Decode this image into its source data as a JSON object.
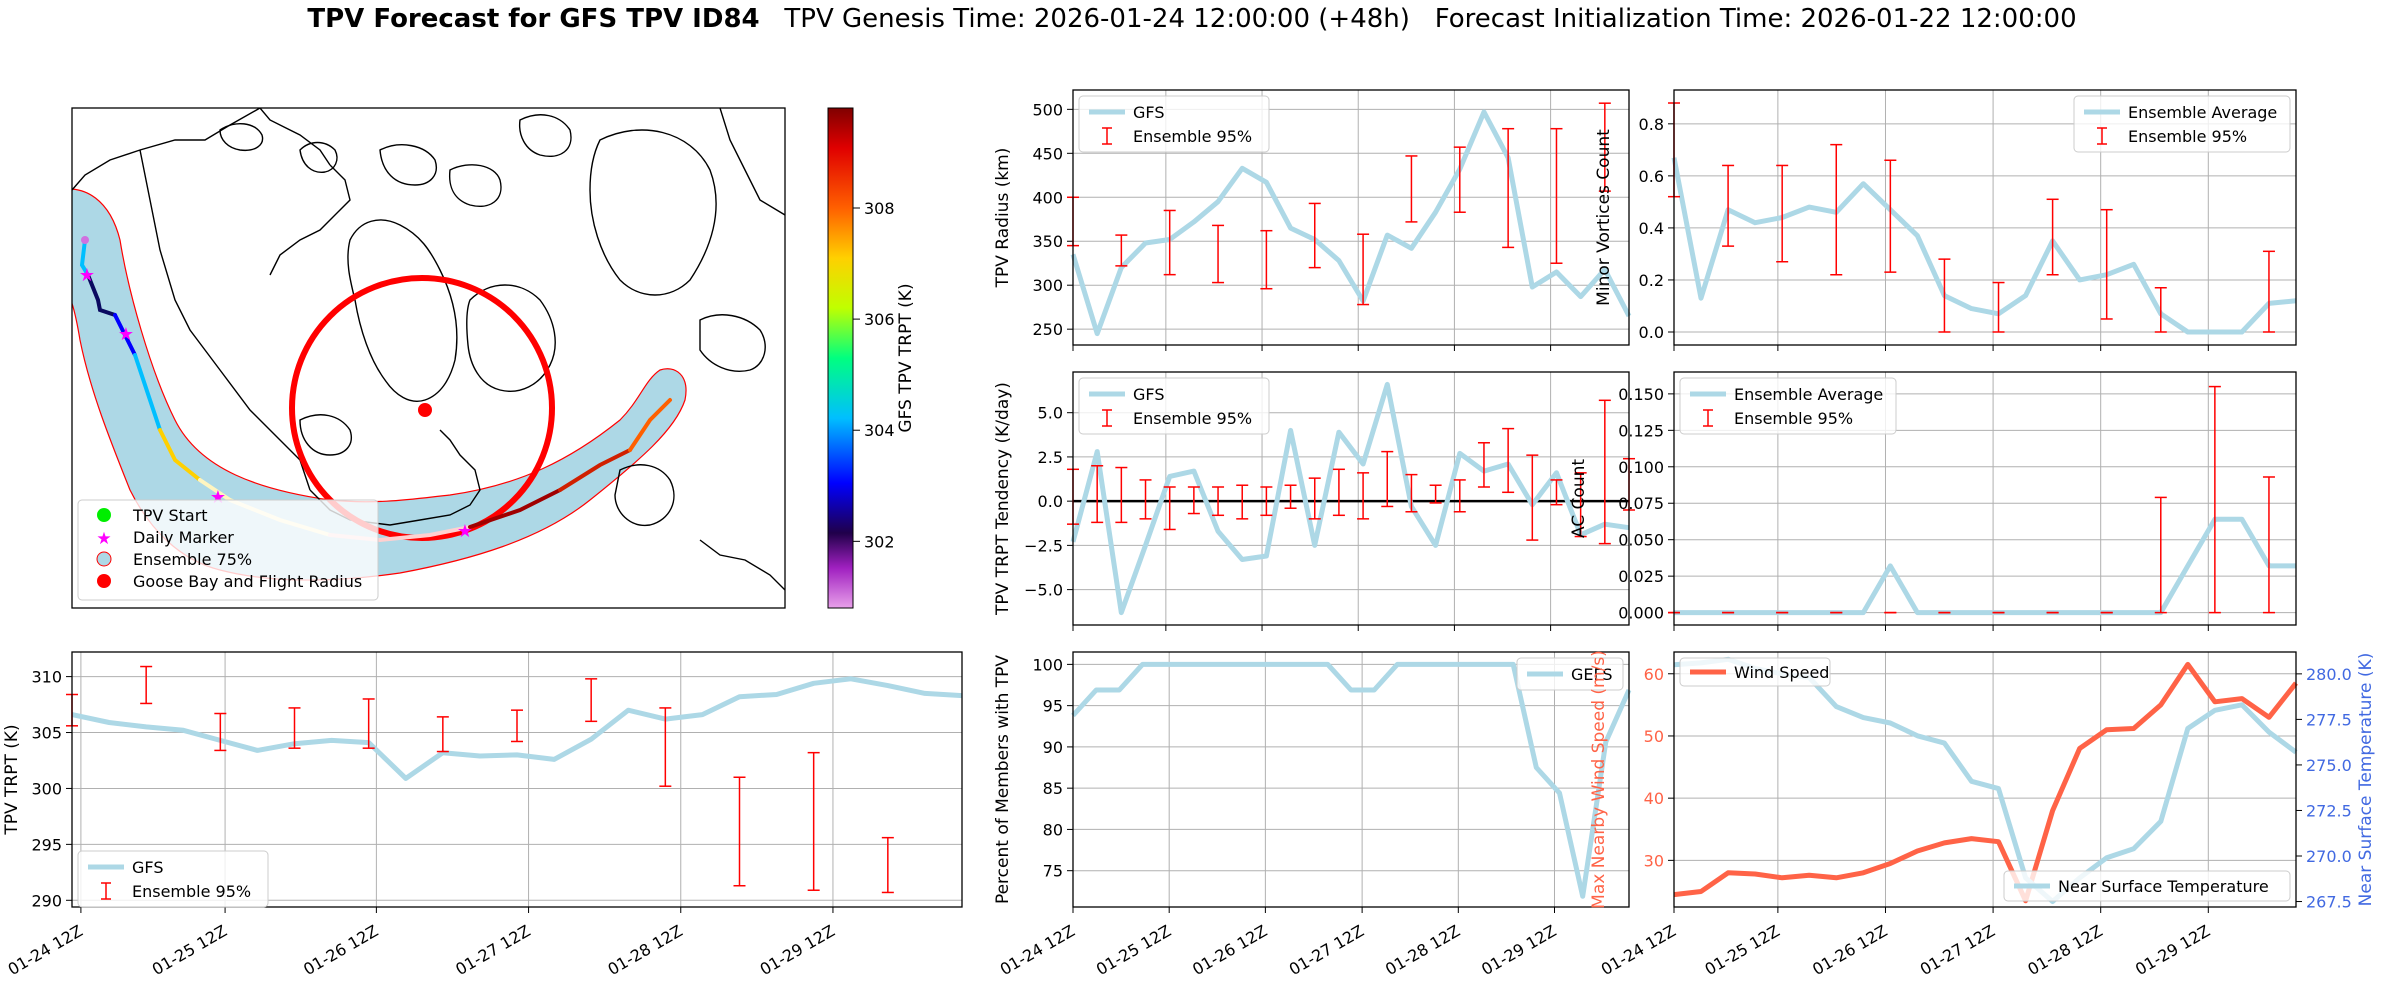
{
  "header": {
    "title_bold": "TPV Forecast for GFS TPV ID84",
    "genesis": "TPV Genesis Time: 2026-01-24 12:00:00 (+48h)",
    "init": "Forecast Initialization Time: 2026-01-22 12:00:00"
  },
  "colors": {
    "gfs_line": "#add8e6",
    "ensemble_err": "#ff0000",
    "wind_line": "#ff6347",
    "temp_axis": "#4169e1",
    "zero_line": "#000000",
    "track_outline": "#ff0000"
  },
  "date_ticks": [
    "01-24 12Z",
    "01-25 12Z",
    "01-26 12Z",
    "01-27 12Z",
    "01-28 12Z",
    "01-29 12Z"
  ],
  "map": {
    "colorbar_label": "GFS TPV TRPT (K)",
    "colorbar_ticks": [
      "302",
      "304",
      "306",
      "308"
    ],
    "colorbar_values": [
      302,
      304,
      306,
      308
    ],
    "colorbar_range": [
      300.8,
      309.8
    ],
    "legend": [
      {
        "label": "TPV Start",
        "marker": "circle",
        "color": "#00ee00"
      },
      {
        "label": "Daily Marker",
        "marker": "star",
        "color": "#ff00ff"
      },
      {
        "label": "Ensemble 75%",
        "marker": "circle",
        "color": "#add8e6"
      },
      {
        "label": "Goose Bay and Flight Radius",
        "marker": "circle",
        "color": "#ff0000"
      }
    ]
  },
  "chart_data": [
    {
      "id": "radius",
      "type": "line",
      "ylabel": "TPV Radius (km)",
      "ylim": [
        232,
        522
      ],
      "yticks": [
        250,
        300,
        350,
        400,
        450,
        500
      ],
      "series": [
        {
          "name": "GFS",
          "values": [
            335,
            245,
            320,
            348,
            352,
            372,
            395,
            433,
            417,
            365,
            352,
            328,
            282,
            357,
            342,
            383,
            432,
            497,
            445,
            298,
            315,
            287,
            318,
            265
          ]
        }
      ],
      "errorbars": {
        "name": "Ensemble 95%",
        "items": [
          {
            "i": 0,
            "lo": 345,
            "hi": 400
          },
          {
            "i": 2,
            "lo": 322,
            "hi": 357
          },
          {
            "i": 4,
            "lo": 312,
            "hi": 385
          },
          {
            "i": 6,
            "lo": 303,
            "hi": 368
          },
          {
            "i": 8,
            "lo": 296,
            "hi": 362
          },
          {
            "i": 10,
            "lo": 320,
            "hi": 393
          },
          {
            "i": 12,
            "lo": 278,
            "hi": 358
          },
          {
            "i": 14,
            "lo": 372,
            "hi": 447
          },
          {
            "i": 16,
            "lo": 383,
            "hi": 457
          },
          {
            "i": 18,
            "lo": 343,
            "hi": 478
          },
          {
            "i": 20,
            "lo": 325,
            "hi": 478
          },
          {
            "i": 22,
            "lo": 407,
            "hi": 507
          }
        ]
      },
      "legend": [
        "GFS",
        "Ensemble 95%"
      ]
    },
    {
      "id": "minor",
      "type": "line",
      "ylabel": "Minor Vortices Count",
      "ylim": [
        -0.05,
        0.93
      ],
      "yticks": [
        "0.0",
        "0.2",
        "0.4",
        "0.6",
        "0.8"
      ],
      "ytick_values": [
        0,
        0.2,
        0.4,
        0.6,
        0.8
      ],
      "series": [
        {
          "name": "Ensemble Average",
          "values": [
            0.67,
            0.13,
            0.47,
            0.42,
            0.44,
            0.48,
            0.46,
            0.57,
            0.47,
            0.37,
            0.14,
            0.09,
            0.07,
            0.14,
            0.35,
            0.2,
            0.22,
            0.26,
            0.07,
            0.0,
            0.0,
            0.0,
            0.11,
            0.12
          ]
        }
      ],
      "errorbars": {
        "name": "Ensemble 95%",
        "items": [
          {
            "i": 0,
            "lo": 0.52,
            "hi": 0.88
          },
          {
            "i": 2,
            "lo": 0.33,
            "hi": 0.64
          },
          {
            "i": 4,
            "lo": 0.27,
            "hi": 0.64
          },
          {
            "i": 6,
            "lo": 0.22,
            "hi": 0.72
          },
          {
            "i": 8,
            "lo": 0.23,
            "hi": 0.66
          },
          {
            "i": 10,
            "lo": 0.0,
            "hi": 0.28
          },
          {
            "i": 12,
            "lo": 0.0,
            "hi": 0.19
          },
          {
            "i": 14,
            "lo": 0.22,
            "hi": 0.51
          },
          {
            "i": 16,
            "lo": 0.05,
            "hi": 0.47
          },
          {
            "i": 18,
            "lo": 0.0,
            "hi": 0.17
          },
          {
            "i": 22,
            "lo": 0.0,
            "hi": 0.31
          }
        ]
      },
      "legend": [
        "Ensemble Average",
        "Ensemble 95%"
      ]
    },
    {
      "id": "tend",
      "type": "line",
      "ylabel": "TPV TRPT Tendency (K/day)",
      "ylim": [
        -7.0,
        7.3
      ],
      "yticks": [
        "−5.0",
        "−2.5",
        "0.0",
        "2.5",
        "5.0"
      ],
      "ytick_values": [
        -5,
        -2.5,
        0,
        2.5,
        5
      ],
      "zero_line": true,
      "series": [
        {
          "name": "GFS",
          "values": [
            -2.3,
            2.8,
            -6.3,
            -2.5,
            1.4,
            1.7,
            -1.7,
            -3.3,
            -3.1,
            4.0,
            -2.5,
            3.9,
            2.1,
            6.6,
            -0.3,
            -2.5,
            2.7,
            1.7,
            2.1,
            -0.2,
            1.6,
            -1.9,
            -1.3,
            -1.5
          ]
        }
      ],
      "errorbars": {
        "name": "Ensemble 95%",
        "items": [
          {
            "i": 0,
            "lo": -1.3,
            "hi": 1.8
          },
          {
            "i": 1,
            "lo": -1.2,
            "hi": 2.0
          },
          {
            "i": 2,
            "lo": -1.2,
            "hi": 1.9
          },
          {
            "i": 3,
            "lo": -1.0,
            "hi": 1.2
          },
          {
            "i": 4,
            "lo": -1.6,
            "hi": 0.8
          },
          {
            "i": 5,
            "lo": -0.7,
            "hi": 0.8
          },
          {
            "i": 6,
            "lo": -0.8,
            "hi": 0.8
          },
          {
            "i": 7,
            "lo": -1.0,
            "hi": 0.9
          },
          {
            "i": 8,
            "lo": -0.8,
            "hi": 0.8
          },
          {
            "i": 9,
            "lo": -0.4,
            "hi": 0.9
          },
          {
            "i": 10,
            "lo": -1.0,
            "hi": 1.3
          },
          {
            "i": 11,
            "lo": -0.8,
            "hi": 1.8
          },
          {
            "i": 12,
            "lo": -1.0,
            "hi": 1.6
          },
          {
            "i": 13,
            "lo": -0.3,
            "hi": 2.8
          },
          {
            "i": 14,
            "lo": -0.6,
            "hi": 1.5
          },
          {
            "i": 15,
            "lo": -0.1,
            "hi": 0.9
          },
          {
            "i": 16,
            "lo": -0.6,
            "hi": 1.2
          },
          {
            "i": 17,
            "lo": 0.8,
            "hi": 3.3
          },
          {
            "i": 18,
            "lo": 0.5,
            "hi": 4.1
          },
          {
            "i": 19,
            "lo": -2.2,
            "hi": 2.6
          },
          {
            "i": 20,
            "lo": -0.2,
            "hi": 1.2
          },
          {
            "i": 21,
            "lo": -2.0,
            "hi": 1.6
          },
          {
            "i": 22,
            "lo": -2.4,
            "hi": 5.7
          },
          {
            "i": 23,
            "lo": -0.5,
            "hi": 2.4
          }
        ]
      },
      "legend": [
        "GFS",
        "Ensemble 95%"
      ]
    },
    {
      "id": "ac",
      "type": "line",
      "ylabel": "AC Count",
      "ylim": [
        -0.0085,
        0.165
      ],
      "yticks": [
        "0.000",
        "0.025",
        "0.050",
        "0.075",
        "0.100",
        "0.125",
        "0.150"
      ],
      "ytick_values": [
        0,
        0.025,
        0.05,
        0.075,
        0.1,
        0.125,
        0.15
      ],
      "series": [
        {
          "name": "Ensemble Average",
          "values": [
            0,
            0,
            0,
            0,
            0,
            0,
            0,
            0,
            0.032,
            0,
            0,
            0,
            0,
            0,
            0,
            0,
            0,
            0,
            0,
            0.032,
            0.064,
            0.064,
            0.032,
            0.032
          ]
        }
      ],
      "errorbars": {
        "name": "Ensemble 95%",
        "items": [
          {
            "i": 0,
            "lo": 0,
            "hi": 0
          },
          {
            "i": 2,
            "lo": 0,
            "hi": 0
          },
          {
            "i": 4,
            "lo": 0,
            "hi": 0
          },
          {
            "i": 6,
            "lo": 0,
            "hi": 0
          },
          {
            "i": 8,
            "lo": 0,
            "hi": 0
          },
          {
            "i": 10,
            "lo": 0,
            "hi": 0
          },
          {
            "i": 12,
            "lo": 0,
            "hi": 0
          },
          {
            "i": 14,
            "lo": 0,
            "hi": 0
          },
          {
            "i": 16,
            "lo": 0,
            "hi": 0
          },
          {
            "i": 18,
            "lo": 0,
            "hi": 0.079
          },
          {
            "i": 20,
            "lo": 0,
            "hi": 0.155
          },
          {
            "i": 22,
            "lo": 0,
            "hi": 0.093
          }
        ]
      },
      "legend": [
        "Ensemble Average",
        "Ensemble 95%"
      ]
    },
    {
      "id": "trpt",
      "type": "line",
      "ylabel": "TPV TRPT (K)",
      "ylim": [
        289.4,
        312.2
      ],
      "yticks": [
        "290",
        "295",
        "300",
        "305",
        "310"
      ],
      "ytick_values": [
        290,
        295,
        300,
        305,
        310
      ],
      "series": [
        {
          "name": "GFS",
          "values": [
            306.6,
            305.9,
            305.5,
            305.2,
            304.3,
            303.4,
            304.0,
            304.3,
            304.1,
            300.9,
            303.2,
            302.9,
            303.0,
            302.6,
            304.4,
            307.0,
            306.2,
            306.6,
            308.2,
            308.4,
            309.4,
            309.8,
            309.2,
            308.5,
            308.3
          ]
        }
      ],
      "errorbars": {
        "name": "Ensemble 95%",
        "items": [
          {
            "i": 0,
            "lo": 305.6,
            "hi": 308.4
          },
          {
            "i": 2,
            "lo": 307.6,
            "hi": 310.9
          },
          {
            "i": 4,
            "lo": 303.4,
            "hi": 306.7
          },
          {
            "i": 6,
            "lo": 303.6,
            "hi": 307.2
          },
          {
            "i": 8,
            "lo": 303.6,
            "hi": 308.0
          },
          {
            "i": 10,
            "lo": 303.3,
            "hi": 306.4
          },
          {
            "i": 12,
            "lo": 304.2,
            "hi": 307.0
          },
          {
            "i": 14,
            "lo": 306.0,
            "hi": 309.8
          },
          {
            "i": 16,
            "lo": 300.2,
            "hi": 307.2
          },
          {
            "i": 18,
            "lo": 291.3,
            "hi": 301.0
          },
          {
            "i": 20,
            "lo": 290.9,
            "hi": 303.2
          },
          {
            "i": 22,
            "lo": 290.7,
            "hi": 295.6
          }
        ]
      },
      "legend": [
        "GFS",
        "Ensemble 95%"
      ]
    },
    {
      "id": "pct",
      "type": "line",
      "ylabel": "Percent of Members with TPV",
      "ylim": [
        70.6,
        101.5
      ],
      "yticks": [
        "75",
        "80",
        "85",
        "90",
        "95",
        "100"
      ],
      "ytick_values": [
        75,
        80,
        85,
        90,
        95,
        100
      ],
      "series": [
        {
          "name": "GEFS",
          "values": [
            93.8,
            96.9,
            96.9,
            100,
            100,
            100,
            100,
            100,
            100,
            100,
            100,
            100,
            96.9,
            96.9,
            100,
            100,
            100,
            100,
            100,
            100,
            87.5,
            84.4,
            71.9,
            90.6,
            96.9
          ]
        }
      ],
      "legend": [
        "GEFS"
      ]
    },
    {
      "id": "wind",
      "type": "line",
      "ylabel": "Max Nearby Wind Speed (m/s)",
      "ylim": [
        22.5,
        63.5
      ],
      "yticks": [
        "30",
        "40",
        "50",
        "60"
      ],
      "ytick_values": [
        30,
        40,
        50,
        60
      ],
      "y2label": "Near Surface Temperature (K)",
      "y2lim": [
        267.2,
        281.2
      ],
      "y2ticks": [
        "267.5",
        "270.0",
        "272.5",
        "275.0",
        "277.5",
        "280.0"
      ],
      "y2tick_values": [
        267.5,
        270,
        272.5,
        275,
        277.5,
        280
      ],
      "series": [
        {
          "name": "Wind Speed",
          "axis": "left",
          "values": [
            24.5,
            25,
            28,
            27.8,
            27.2,
            27.6,
            27.2,
            28,
            29.5,
            31.5,
            32.8,
            33.5,
            33,
            23.5,
            38,
            48,
            51,
            51.2,
            55,
            61.5,
            55.5,
            56,
            53,
            58.5
          ]
        },
        {
          "name": "Near Surface Temperature",
          "axis": "right",
          "values": [
            280.5,
            280.6,
            280.8,
            280.3,
            280.0,
            279.8,
            278.2,
            277.6,
            277.3,
            276.6,
            276.2,
            274.1,
            273.7,
            268.8,
            267.5,
            268.8,
            269.9,
            270.4,
            271.9,
            277.0,
            278.0,
            278.3,
            276.8,
            275.7
          ]
        }
      ],
      "legend": [
        "Wind Speed",
        "Near Surface Temperature"
      ]
    }
  ]
}
